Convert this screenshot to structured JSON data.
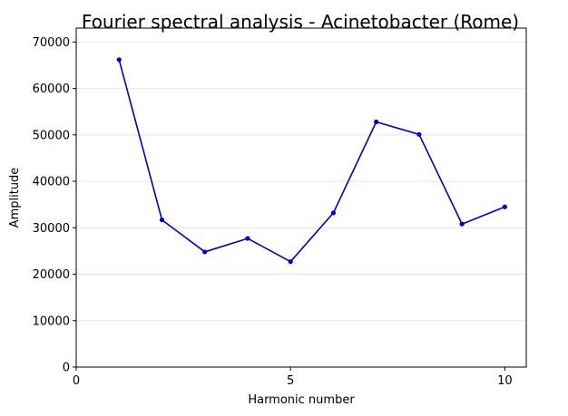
{
  "chart_data": {
    "type": "line",
    "title": "Fourier spectral analysis - Acinetobacter (Rome)",
    "xlabel": "Harmonic number",
    "ylabel": "Amplitude",
    "xlim": [
      0,
      10.5
    ],
    "ylim": [
      0,
      73000
    ],
    "xticks": [
      0,
      5,
      10
    ],
    "yticks": [
      0,
      10000,
      20000,
      30000,
      40000,
      50000,
      60000,
      70000
    ],
    "grid": "horizontal",
    "line_color": "#0000cc",
    "series": [
      {
        "x": [
          1,
          2,
          3,
          4,
          5,
          6,
          7,
          8,
          9,
          10
        ],
        "values": [
          66200,
          31700,
          24800,
          27700,
          22700,
          33200,
          52800,
          50100,
          30800,
          34500
        ]
      }
    ]
  }
}
